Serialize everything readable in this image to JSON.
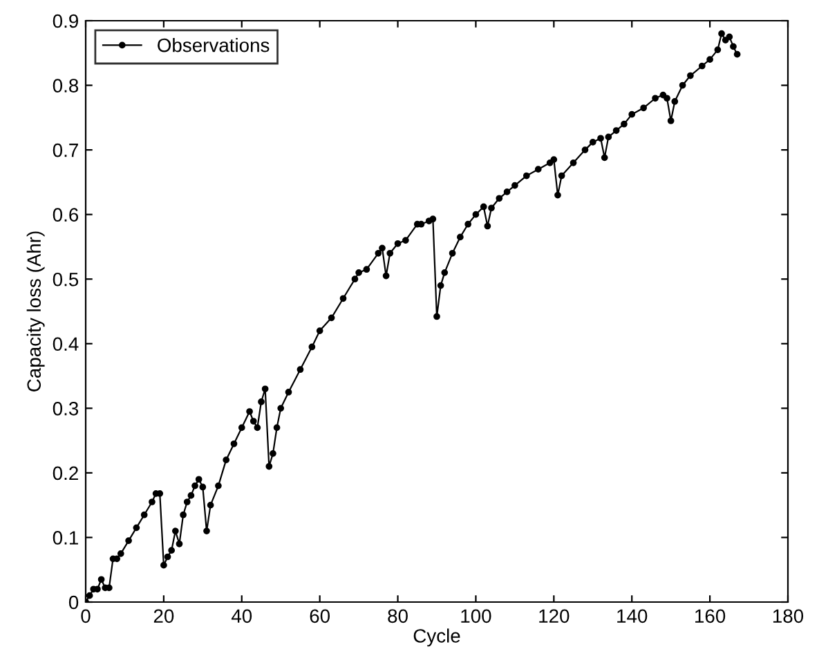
{
  "chart_data": {
    "type": "line",
    "xlabel": "Cycle",
    "ylabel": "Capacity loss (Ahr)",
    "x": [
      0,
      1,
      2,
      3,
      4,
      5,
      6,
      7,
      8,
      9,
      11,
      13,
      15,
      17,
      18,
      19,
      20,
      21,
      22,
      23,
      24,
      25,
      26,
      27,
      28,
      29,
      30,
      31,
      32,
      34,
      36,
      38,
      40,
      42,
      43,
      44,
      45,
      46,
      47,
      48,
      49,
      50,
      52,
      55,
      58,
      60,
      63,
      66,
      69,
      70,
      72,
      75,
      76,
      77,
      78,
      80,
      82,
      85,
      86,
      88,
      89,
      90,
      91,
      92,
      94,
      96,
      98,
      100,
      102,
      103,
      104,
      106,
      108,
      110,
      113,
      116,
      119,
      120,
      121,
      122,
      125,
      128,
      130,
      132,
      133,
      134,
      136,
      138,
      140,
      143,
      146,
      148,
      149,
      150,
      151,
      153,
      155,
      158,
      160,
      162,
      163,
      164,
      165,
      166,
      167
    ],
    "series": [
      {
        "name": "Observations",
        "color": "#000000",
        "values": [
          0,
          0.01,
          0.02,
          0.02,
          0.035,
          0.022,
          0.022,
          0.067,
          0.067,
          0.075,
          0.095,
          0.115,
          0.135,
          0.155,
          0.168,
          0.168,
          0.057,
          0.07,
          0.08,
          0.11,
          0.09,
          0.135,
          0.155,
          0.165,
          0.18,
          0.19,
          0.178,
          0.11,
          0.15,
          0.18,
          0.22,
          0.245,
          0.27,
          0.295,
          0.28,
          0.27,
          0.31,
          0.33,
          0.21,
          0.23,
          0.27,
          0.3,
          0.325,
          0.36,
          0.395,
          0.42,
          0.44,
          0.47,
          0.5,
          0.51,
          0.515,
          0.54,
          0.548,
          0.505,
          0.54,
          0.555,
          0.56,
          0.585,
          0.585,
          0.59,
          0.593,
          0.442,
          0.49,
          0.51,
          0.54,
          0.565,
          0.585,
          0.6,
          0.612,
          0.582,
          0.61,
          0.625,
          0.635,
          0.645,
          0.66,
          0.67,
          0.68,
          0.685,
          0.63,
          0.66,
          0.68,
          0.7,
          0.712,
          0.718,
          0.688,
          0.72,
          0.73,
          0.74,
          0.755,
          0.765,
          0.78,
          0.785,
          0.78,
          0.745,
          0.775,
          0.8,
          0.815,
          0.83,
          0.84,
          0.855,
          0.88,
          0.87,
          0.875,
          0.86,
          0.848
        ]
      }
    ],
    "xlim": [
      0,
      180
    ],
    "ylim": [
      0,
      0.9
    ],
    "xticks": [
      0,
      20,
      40,
      60,
      80,
      100,
      120,
      140,
      160,
      180
    ],
    "yticks": [
      0,
      0.1,
      0.2,
      0.3,
      0.4,
      0.5,
      0.6,
      0.7,
      0.8,
      0.9
    ],
    "grid": false,
    "legend": "top left",
    "marker": "circle",
    "line_style": "solid"
  }
}
